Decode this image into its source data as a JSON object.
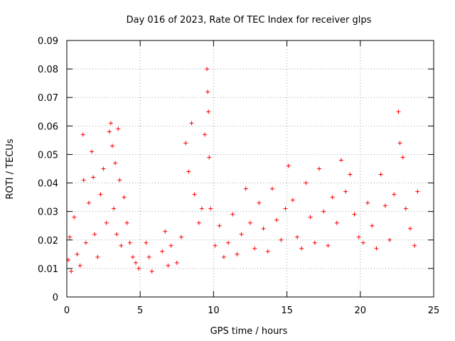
{
  "chart_data": {
    "type": "scatter",
    "title": "Day 016 of 2023, Rate Of TEC Index for receiver glps",
    "xlabel": "GPS time / hours",
    "ylabel": "ROTI / TECUs",
    "xlim": [
      0,
      25
    ],
    "ylim": [
      0,
      0.09
    ],
    "xticks": [
      0,
      5,
      10,
      15,
      20,
      25
    ],
    "xtick_labels": [
      "0",
      "5",
      "10",
      "15",
      "20",
      "25"
    ],
    "yticks": [
      0,
      0.01,
      0.02,
      0.03,
      0.04,
      0.05,
      0.06,
      0.07,
      0.08,
      0.09
    ],
    "ytick_labels": [
      "0",
      "0.01",
      "0.02",
      "0.03",
      "0.04",
      "0.05",
      "0.06",
      "0.07",
      "0.08",
      "0.09"
    ],
    "grid": true,
    "marker": "+",
    "color": "#ff0000",
    "series": [
      {
        "name": "ROTI",
        "x": [
          0.1,
          0.2,
          0.3,
          0.5,
          0.7,
          0.9,
          1.1,
          1.15,
          1.3,
          1.5,
          1.7,
          1.8,
          1.9,
          2.1,
          2.3,
          2.5,
          2.7,
          2.9,
          3.0,
          3.1,
          3.2,
          3.3,
          3.4,
          3.5,
          3.6,
          3.7,
          3.9,
          4.1,
          4.3,
          4.5,
          4.7,
          4.9,
          5.4,
          5.6,
          5.8,
          6.5,
          6.7,
          6.9,
          7.1,
          7.5,
          7.8,
          8.1,
          8.3,
          8.5,
          8.7,
          9.0,
          9.2,
          9.4,
          9.55,
          9.6,
          9.65,
          9.7,
          9.8,
          10.1,
          10.4,
          10.7,
          11.0,
          11.3,
          11.6,
          11.9,
          12.2,
          12.5,
          12.8,
          13.1,
          13.4,
          13.7,
          14.0,
          14.3,
          14.6,
          14.9,
          15.1,
          15.4,
          15.7,
          16.0,
          16.3,
          16.6,
          16.9,
          17.2,
          17.5,
          17.8,
          18.1,
          18.4,
          18.7,
          19.0,
          19.3,
          19.6,
          19.9,
          20.2,
          20.5,
          20.8,
          21.1,
          21.4,
          21.7,
          22.0,
          22.3,
          22.6,
          22.7,
          22.9,
          23.1,
          23.4,
          23.7,
          23.9
        ],
        "y": [
          0.013,
          0.021,
          0.009,
          0.028,
          0.015,
          0.011,
          0.057,
          0.041,
          0.019,
          0.033,
          0.051,
          0.042,
          0.022,
          0.014,
          0.036,
          0.045,
          0.026,
          0.058,
          0.061,
          0.053,
          0.031,
          0.047,
          0.022,
          0.059,
          0.041,
          0.018,
          0.035,
          0.026,
          0.019,
          0.014,
          0.012,
          0.01,
          0.019,
          0.014,
          0.009,
          0.016,
          0.023,
          0.011,
          0.018,
          0.012,
          0.021,
          0.054,
          0.044,
          0.061,
          0.036,
          0.026,
          0.031,
          0.057,
          0.08,
          0.072,
          0.065,
          0.049,
          0.031,
          0.018,
          0.025,
          0.014,
          0.019,
          0.029,
          0.015,
          0.022,
          0.038,
          0.026,
          0.017,
          0.033,
          0.024,
          0.016,
          0.038,
          0.027,
          0.02,
          0.031,
          0.046,
          0.034,
          0.021,
          0.017,
          0.04,
          0.028,
          0.019,
          0.045,
          0.03,
          0.018,
          0.035,
          0.026,
          0.048,
          0.037,
          0.043,
          0.029,
          0.021,
          0.019,
          0.033,
          0.025,
          0.017,
          0.043,
          0.032,
          0.02,
          0.036,
          0.065,
          0.054,
          0.049,
          0.031,
          0.024,
          0.018,
          0.037
        ]
      }
    ]
  }
}
